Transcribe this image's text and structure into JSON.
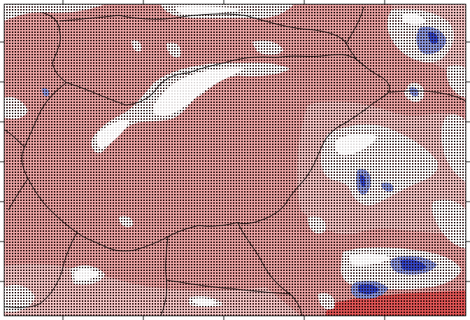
{
  "map": {
    "colors": {
      "anomaly_positive": "#e9a3a3",
      "anomaly_positive_light": "#f2c4c4",
      "anomaly_positive_strong": "#e05555",
      "anomaly_negative": "#8a9ae0",
      "anomaly_negative_strong": "#3347c8",
      "no_signal": "#ffffff",
      "border": "#000000",
      "significance_dot": "#1a0000"
    },
    "layers": [
      "anomaly-field",
      "significance-stippling",
      "country-borders",
      "graticule-ticks"
    ]
  }
}
